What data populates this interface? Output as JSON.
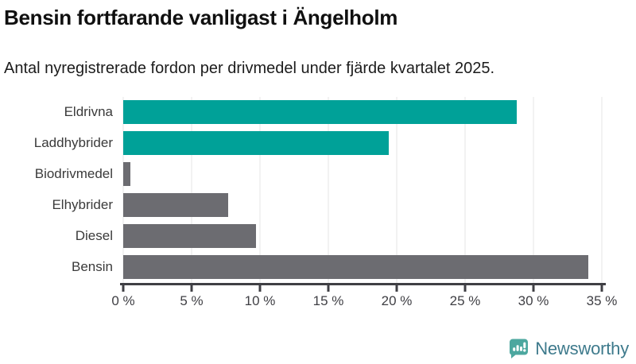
{
  "title": "Bensin fortfarande vanligast i Ängelholm",
  "subtitle": "Antal nyregistrerade fordon per drivmedel under fjärde kvartalet 2025.",
  "colors": {
    "highlight": "#00a198",
    "default": "#6c6c71",
    "axis": "#3f3f44",
    "gridline": "#e4e4e6",
    "logo_teal": "#4ca79f",
    "logo_text": "#3e7a8c"
  },
  "chart_data": {
    "type": "bar",
    "orientation": "horizontal",
    "title": "Bensin fortfarande vanligast i Ängelholm",
    "subtitle": "Antal nyregistrerade fordon per drivmedel under fjärde kvartalet 2025.",
    "categories": [
      "Eldrivna",
      "Laddhybrider",
      "Biodrivmedel",
      "Elhybrider",
      "Diesel",
      "Bensin"
    ],
    "values": [
      28.8,
      19.4,
      0.5,
      7.7,
      9.7,
      34.0
    ],
    "bar_colors": [
      "highlight",
      "highlight",
      "default",
      "default",
      "default",
      "default"
    ],
    "unit": "%",
    "xlabel": "",
    "ylabel": "",
    "xlim": [
      0,
      35
    ],
    "x_ticks": [
      0,
      5,
      10,
      15,
      20,
      25,
      30,
      35
    ],
    "x_tick_labels": [
      "0 %",
      "5 %",
      "10 %",
      "15 %",
      "20 %",
      "25 %",
      "30 %",
      "35 %"
    ],
    "grid": true,
    "legend": false
  },
  "footer": {
    "brand": "Newsworthy"
  }
}
